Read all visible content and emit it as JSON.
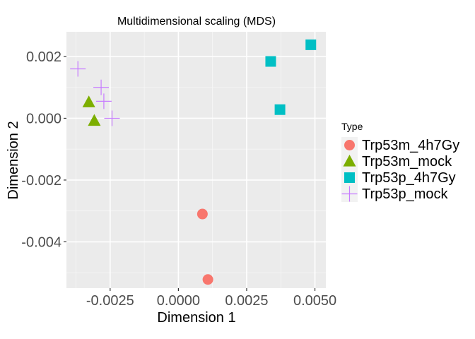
{
  "chart_data": {
    "type": "scatter",
    "title": "Multidimensional scaling (MDS)",
    "xlabel": "Dimension 1",
    "ylabel": "Dimension 2",
    "xlim": [
      -0.0041,
      0.0054
    ],
    "ylim": [
      -0.0055,
      0.0028
    ],
    "x_ticks": [
      -0.0025,
      0.0,
      0.0025,
      0.005
    ],
    "x_tick_labels": [
      "-0.0025",
      "0.0000",
      "0.0025",
      "0.0050"
    ],
    "y_ticks": [
      -0.004,
      -0.002,
      0.0,
      0.002
    ],
    "y_tick_labels": [
      "-0.004",
      "-0.002",
      "0.000",
      "0.002"
    ],
    "grid": true,
    "legend_title": "Type",
    "legend_position": "right",
    "series": [
      {
        "name": "Trp53m_4h7Gy",
        "shape": "circle",
        "color": "#F8766D",
        "points": [
          {
            "x": 0.00088,
            "y": -0.0031
          },
          {
            "x": 0.00108,
            "y": -0.00522
          }
        ]
      },
      {
        "name": "Trp53m_mock",
        "shape": "triangle",
        "color": "#7CAE00",
        "points": [
          {
            "x": -0.00328,
            "y": 0.00052
          },
          {
            "x": -0.00308,
            "y": -8e-05
          }
        ]
      },
      {
        "name": "Trp53p_4h7Gy",
        "shape": "square",
        "color": "#00BFC4",
        "points": [
          {
            "x": 0.00485,
            "y": 0.00238
          },
          {
            "x": 0.00338,
            "y": 0.00184
          },
          {
            "x": 0.00372,
            "y": 0.00028
          }
        ]
      },
      {
        "name": "Trp53p_mock",
        "shape": "cross",
        "color": "#C77CFF",
        "points": [
          {
            "x": -0.00368,
            "y": 0.0016
          },
          {
            "x": -0.00283,
            "y": 0.001
          },
          {
            "x": -0.00273,
            "y": 0.00055
          },
          {
            "x": -0.00243,
            "y": 0.0
          }
        ]
      }
    ]
  }
}
